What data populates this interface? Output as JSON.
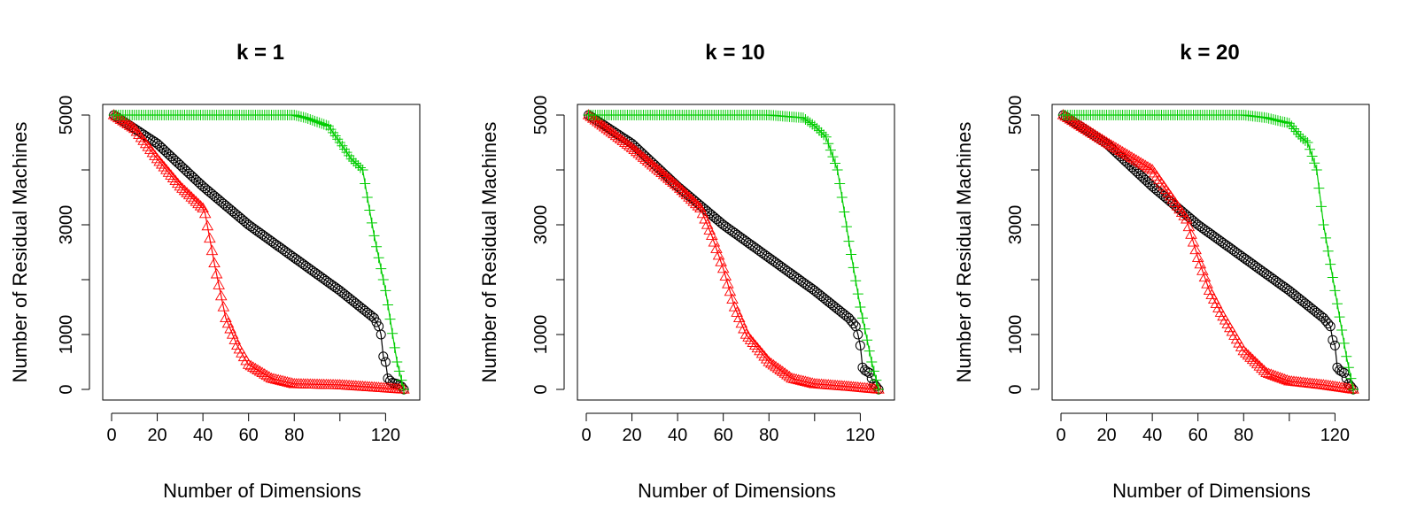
{
  "figure": {
    "xlabel": "Number of Dimensions",
    "ylabel": "Number of Residual Machines"
  },
  "colors": {
    "circle_series": "#000000",
    "triangle_series": "#ff0000",
    "plus_series": "#00cc00"
  },
  "chart_data": [
    {
      "type": "line",
      "title": "k = 1",
      "xlabel": "Number of Dimensions",
      "ylabel": "Number of Residual Machines",
      "xlim": [
        0,
        128
      ],
      "ylim": [
        0,
        5000
      ],
      "xticks": [
        0,
        20,
        40,
        60,
        80,
        120
      ],
      "yticks": [
        0,
        1000,
        3000,
        5000
      ],
      "grid": false,
      "series": [
        {
          "marker": "circle",
          "color": "#000000",
          "x": [
            1,
            20,
            40,
            60,
            80,
            100,
            115,
            117,
            118,
            119,
            120,
            121,
            123,
            125,
            127,
            128
          ],
          "y": [
            5000,
            4480,
            3700,
            3000,
            2400,
            1800,
            1300,
            1150,
            1000,
            600,
            500,
            200,
            120,
            100,
            50,
            0
          ]
        },
        {
          "marker": "triangle",
          "color": "#ff0000",
          "x": [
            1,
            10,
            20,
            30,
            40,
            41,
            45,
            50,
            55,
            60,
            62,
            70,
            80,
            100,
            128
          ],
          "y": [
            5000,
            4750,
            4200,
            3700,
            3300,
            3200,
            2300,
            1300,
            800,
            450,
            400,
            200,
            100,
            80,
            0
          ]
        },
        {
          "marker": "plus",
          "color": "#00cc00",
          "x": [
            1,
            20,
            40,
            60,
            80,
            85,
            95,
            100,
            105,
            110,
            112,
            115,
            120,
            125,
            128
          ],
          "y": [
            5000,
            5000,
            5000,
            5000,
            5000,
            4950,
            4800,
            4500,
            4200,
            4000,
            3500,
            2800,
            1800,
            500,
            0
          ]
        }
      ]
    },
    {
      "type": "line",
      "title": "k = 10",
      "xlabel": "Number of Dimensions",
      "ylabel": "Number of Residual Machines",
      "xlim": [
        0,
        128
      ],
      "ylim": [
        0,
        5000
      ],
      "xticks": [
        0,
        20,
        40,
        60,
        80,
        120
      ],
      "yticks": [
        0,
        1000,
        3000,
        5000
      ],
      "grid": false,
      "series": [
        {
          "marker": "circle",
          "color": "#000000",
          "x": [
            1,
            20,
            40,
            60,
            80,
            100,
            115,
            118,
            119,
            120,
            121,
            122,
            124,
            126,
            128
          ],
          "y": [
            5000,
            4480,
            3700,
            3000,
            2400,
            1800,
            1300,
            1150,
            1000,
            800,
            400,
            350,
            300,
            100,
            0
          ]
        },
        {
          "marker": "triangle",
          "color": "#ff0000",
          "x": [
            1,
            20,
            40,
            50,
            55,
            60,
            65,
            70,
            80,
            90,
            100,
            115,
            128
          ],
          "y": [
            5000,
            4400,
            3700,
            3300,
            2800,
            2200,
            1500,
            1000,
            500,
            200,
            100,
            50,
            0
          ]
        },
        {
          "marker": "plus",
          "color": "#00cc00",
          "x": [
            1,
            20,
            40,
            60,
            80,
            95,
            100,
            105,
            110,
            112,
            115,
            120,
            125,
            128
          ],
          "y": [
            5000,
            5000,
            5000,
            5000,
            5000,
            4950,
            4800,
            4600,
            4000,
            3500,
            2700,
            1500,
            500,
            0
          ]
        }
      ]
    },
    {
      "type": "line",
      "title": "k = 20",
      "xlabel": "Number of Dimensions",
      "ylabel": "Number of Residual Machines",
      "xlim": [
        0,
        128
      ],
      "ylim": [
        0,
        5000
      ],
      "xticks": [
        0,
        20,
        40,
        60,
        80,
        120
      ],
      "yticks": [
        0,
        1000,
        3000,
        5000
      ],
      "grid": false,
      "series": [
        {
          "marker": "circle",
          "color": "#000000",
          "x": [
            1,
            20,
            40,
            60,
            80,
            100,
            115,
            118,
            119,
            120,
            121,
            122,
            124,
            126,
            128
          ],
          "y": [
            5000,
            4480,
            3700,
            3000,
            2400,
            1800,
            1300,
            1150,
            900,
            800,
            400,
            350,
            300,
            100,
            0
          ]
        },
        {
          "marker": "triangle",
          "color": "#ff0000",
          "x": [
            1,
            20,
            40,
            45,
            50,
            55,
            60,
            65,
            70,
            80,
            90,
            100,
            115,
            128
          ],
          "y": [
            5000,
            4500,
            4000,
            3700,
            3400,
            3100,
            2400,
            1800,
            1400,
            700,
            300,
            150,
            80,
            0
          ]
        },
        {
          "marker": "plus",
          "color": "#00cc00",
          "x": [
            1,
            20,
            40,
            60,
            80,
            90,
            100,
            105,
            108,
            112,
            115,
            120,
            125,
            128
          ],
          "y": [
            5000,
            5000,
            5000,
            5000,
            5000,
            4950,
            4850,
            4600,
            4500,
            4000,
            3000,
            1800,
            600,
            0
          ]
        }
      ]
    }
  ]
}
